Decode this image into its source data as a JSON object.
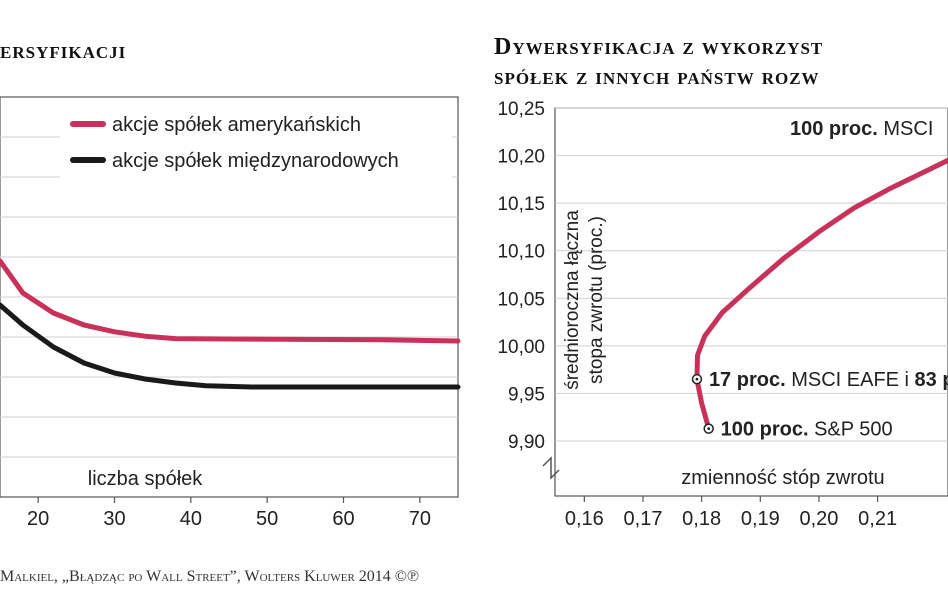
{
  "left_panel": {
    "title": "ersyfikacji",
    "xlabel": "liczba spółek"
  },
  "right_panel": {
    "title_line1": "Dywersyfikacja z wykorzyst",
    "title_line2": "spółek z innych państw rozw",
    "ylabel_line1": "średnioroczna łączna",
    "ylabel_line2": "stopa zwrotu (proc.)",
    "xlabel": "zmienność stóp zwrotu"
  },
  "source": "Malkiel, „Błądząc po Wall Street”, Wolters Kluwer 2014 ©℗",
  "colors": {
    "usa": "#c8325a",
    "intl": "#1a1a1a",
    "grid": "#cfcfcf",
    "axis": "#555555"
  },
  "chart_data": [
    {
      "type": "line",
      "title": "ersyfikacji",
      "xlabel": "liczba spółek",
      "ylabel": "",
      "x_ticks": [
        20,
        30,
        40,
        50,
        60,
        70
      ],
      "xlim": [
        15,
        75
      ],
      "ylim": [
        0,
        10
      ],
      "grid": true,
      "legend_position": "top-right",
      "series": [
        {
          "name": "akcje spółek amerykańskich",
          "x": [
            15,
            18,
            22,
            26,
            30,
            34,
            38,
            45,
            55,
            65,
            75
          ],
          "y": [
            5.9,
            5.1,
            4.6,
            4.3,
            4.13,
            4.02,
            3.96,
            3.95,
            3.94,
            3.93,
            3.9
          ]
        },
        {
          "name": "akcje spółek międzynarodowych",
          "x": [
            15,
            18,
            22,
            26,
            30,
            34,
            38,
            42,
            48,
            55,
            65,
            75
          ],
          "y": [
            4.8,
            4.3,
            3.75,
            3.35,
            3.1,
            2.95,
            2.85,
            2.78,
            2.75,
            2.75,
            2.75,
            2.75
          ]
        }
      ]
    },
    {
      "type": "line",
      "title": "Dywersyfikacja z wykorzyst spółek z innych państw rozw",
      "xlabel": "zmienność stóp zwrotu",
      "ylabel": "średnioroczna łączna stopa zwrotu (proc.)",
      "x_ticks": [
        "0,16",
        "0,17",
        "0,18",
        "0,19",
        "0,20",
        "0,21"
      ],
      "y_ticks": [
        "9,90",
        "9,95",
        "10,00",
        "10,05",
        "10,10",
        "10,15",
        "10,20",
        "10,25"
      ],
      "xlim": [
        0.155,
        0.222
      ],
      "ylim": [
        9.9,
        10.25
      ],
      "grid": true,
      "series": [
        {
          "name": "",
          "x": [
            0.1812,
            0.18,
            0.1792,
            0.1793,
            0.1805,
            0.1835,
            0.188,
            0.194,
            0.2,
            0.206,
            0.212,
            0.217,
            0.222
          ],
          "y": [
            9.913,
            9.94,
            9.965,
            9.99,
            10.01,
            10.035,
            10.06,
            10.092,
            10.12,
            10.145,
            10.165,
            10.18,
            10.195
          ]
        }
      ],
      "annotations": [
        {
          "bold": "100 proc.",
          "text": "S&P 500",
          "x": 0.1812,
          "y": 9.913
        },
        {
          "bold": "17 proc.",
          "text": "MSCI EAFE i",
          "bold2": "83 p",
          "x": 0.1792,
          "y": 9.965
        },
        {
          "bold": "100 proc.",
          "text": "MSCI",
          "x": 0.222,
          "y": 10.2
        }
      ]
    }
  ]
}
